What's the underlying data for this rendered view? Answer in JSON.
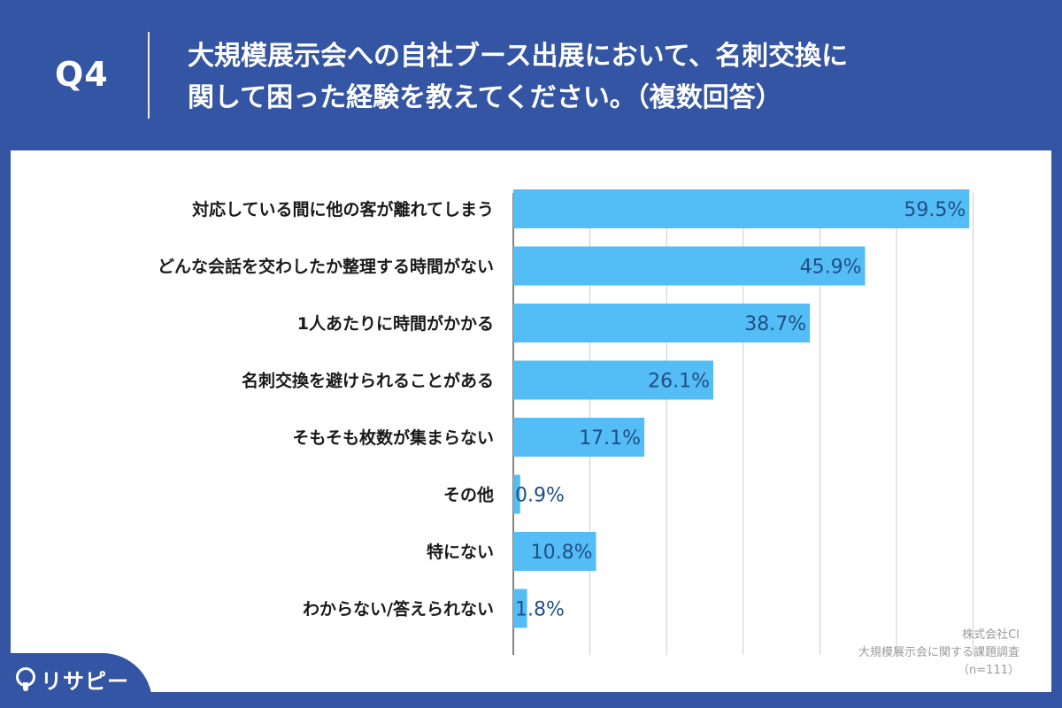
{
  "header": {
    "question": "Q4",
    "title_line1": "大規模展示会への自社ブース出展において、名刺交換に",
    "title_line2": "関して困った経験を教えてください。（複数回答）"
  },
  "footer": {
    "company": "株式会社CI",
    "survey": "大規模展示会に関する課題調査",
    "n": "（n=111）"
  },
  "logo": {
    "text": "リサピー",
    "icon": "pin-icon"
  },
  "colors": {
    "background": "#3355a3",
    "bar": "#55bdf5",
    "value_text": "#1f4f86",
    "grid": "#cccccc"
  },
  "chart_data": {
    "type": "bar",
    "orientation": "horizontal",
    "categories": [
      "対応している間に他の客が離れてしまう",
      "どんな会話を交わしたか整理する時間がない",
      "1人あたりに時間がかかる",
      "名刺交換を避けられることがある",
      "そもそも枚数が集まらない",
      "その他",
      "特にない",
      "わからない/答えられない"
    ],
    "values": [
      59.5,
      45.9,
      38.7,
      26.1,
      17.1,
      0.9,
      10.8,
      1.8
    ],
    "value_labels": [
      "59.5%",
      "45.9%",
      "38.7%",
      "26.1%",
      "17.1%",
      "0.9%",
      "10.8%",
      "1.8%"
    ],
    "xlim": [
      0,
      60
    ],
    "grid": true,
    "legend": "none"
  }
}
